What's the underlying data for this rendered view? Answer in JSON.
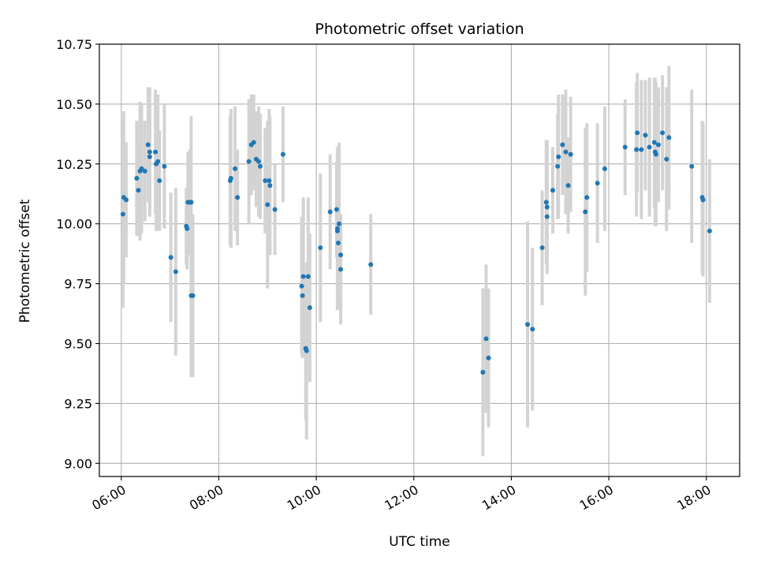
{
  "chart_data": {
    "type": "scatter",
    "title": "Photometric offset variation",
    "xlabel": "UTC time",
    "ylabel": "Photometric offset",
    "xlim": [
      "05:33",
      "18:41"
    ],
    "ylim": [
      8.945,
      10.75
    ],
    "x_ticks": [
      "06:00",
      "08:00",
      "10:00",
      "12:00",
      "14:00",
      "16:00",
      "18:00"
    ],
    "y_ticks": [
      "9.00",
      "9.25",
      "9.50",
      "9.75",
      "10.00",
      "10.25",
      "10.50",
      "10.75"
    ],
    "grid": true,
    "colors": {
      "point": "#1f77b4",
      "errorbar": "#d3d3d3",
      "grid": "#b0b0b0"
    },
    "series": [
      {
        "points": [
          {
            "x": "06:02",
            "y": 10.04,
            "err": 0.39
          },
          {
            "x": "06:03",
            "y": 10.11,
            "err": 0.36
          },
          {
            "x": "06:06",
            "y": 10.1,
            "err": 0.24
          },
          {
            "x": "06:19",
            "y": 10.19,
            "err": 0.24
          },
          {
            "x": "06:21",
            "y": 10.14,
            "err": 0.19
          },
          {
            "x": "06:23",
            "y": 10.22,
            "err": 0.29
          },
          {
            "x": "06:25",
            "y": 10.23,
            "err": 0.27
          },
          {
            "x": "06:29",
            "y": 10.22,
            "err": 0.21
          },
          {
            "x": "06:33",
            "y": 10.33,
            "err": 0.24
          },
          {
            "x": "06:35",
            "y": 10.3,
            "err": 0.27
          },
          {
            "x": "06:35",
            "y": 10.28,
            "err": 0.22
          },
          {
            "x": "06:42",
            "y": 10.3,
            "err": 0.26
          },
          {
            "x": "06:43",
            "y": 10.25,
            "err": 0.28
          },
          {
            "x": "06:45",
            "y": 10.26,
            "err": 0.28
          },
          {
            "x": "06:47",
            "y": 10.18,
            "err": 0.21
          },
          {
            "x": "06:53",
            "y": 10.24,
            "err": 0.26
          },
          {
            "x": "07:01",
            "y": 9.86,
            "err": 0.27
          },
          {
            "x": "07:07",
            "y": 9.8,
            "err": 0.35
          },
          {
            "x": "07:20",
            "y": 9.99,
            "err": 0.16
          },
          {
            "x": "07:21",
            "y": 9.98,
            "err": 0.17
          },
          {
            "x": "07:22",
            "y": 10.09,
            "err": 0.21
          },
          {
            "x": "07:24",
            "y": 10.09,
            "err": 0.22
          },
          {
            "x": "07:26",
            "y": 10.09,
            "err": 0.36
          },
          {
            "x": "07:26",
            "y": 9.7,
            "err": 0.34
          },
          {
            "x": "07:28",
            "y": 9.7,
            "err": 0.34
          },
          {
            "x": "08:14",
            "y": 10.18,
            "err": 0.27
          },
          {
            "x": "08:15",
            "y": 10.19,
            "err": 0.29
          },
          {
            "x": "08:20",
            "y": 10.23,
            "err": 0.26
          },
          {
            "x": "08:23",
            "y": 10.11,
            "err": 0.2
          },
          {
            "x": "08:37",
            "y": 10.26,
            "err": 0.26
          },
          {
            "x": "08:40",
            "y": 10.33,
            "err": 0.21
          },
          {
            "x": "08:43",
            "y": 10.34,
            "err": 0.2
          },
          {
            "x": "08:46",
            "y": 10.27,
            "err": 0.2
          },
          {
            "x": "08:49",
            "y": 10.26,
            "err": 0.23
          },
          {
            "x": "08:51",
            "y": 10.24,
            "err": 0.22
          },
          {
            "x": "08:57",
            "y": 10.18,
            "err": 0.22
          },
          {
            "x": "09:00",
            "y": 10.08,
            "err": 0.35
          },
          {
            "x": "09:02",
            "y": 10.18,
            "err": 0.3
          },
          {
            "x": "09:03",
            "y": 10.16,
            "err": 0.29
          },
          {
            "x": "09:09",
            "y": 10.06,
            "err": 0.19
          },
          {
            "x": "09:19",
            "y": 10.29,
            "err": 0.2
          },
          {
            "x": "09:42",
            "y": 9.74,
            "err": 0.29
          },
          {
            "x": "09:43",
            "y": 9.7,
            "err": 0.26
          },
          {
            "x": "09:44",
            "y": 9.78,
            "err": 0.33
          },
          {
            "x": "09:47",
            "y": 9.48,
            "err": 0.3
          },
          {
            "x": "09:48",
            "y": 9.47,
            "err": 0.37
          },
          {
            "x": "09:50",
            "y": 9.78,
            "err": 0.33
          },
          {
            "x": "09:52",
            "y": 9.65,
            "err": 0.31
          },
          {
            "x": "10:05",
            "y": 9.9,
            "err": 0.31
          },
          {
            "x": "10:17",
            "y": 10.05,
            "err": 0.24
          },
          {
            "x": "10:25",
            "y": 10.06,
            "err": 0.2
          },
          {
            "x": "10:26",
            "y": 9.98,
            "err": 0.34
          },
          {
            "x": "10:26",
            "y": 9.97,
            "err": 0.33
          },
          {
            "x": "10:27",
            "y": 9.92,
            "err": 0.26
          },
          {
            "x": "10:28",
            "y": 10.0,
            "err": 0.34
          },
          {
            "x": "10:30",
            "y": 9.87,
            "err": 0.17
          },
          {
            "x": "10:30",
            "y": 9.81,
            "err": 0.23
          },
          {
            "x": "11:07",
            "y": 9.83,
            "err": 0.21
          },
          {
            "x": "13:25",
            "y": 9.38,
            "err": 0.35
          },
          {
            "x": "13:29",
            "y": 9.52,
            "err": 0.31
          },
          {
            "x": "13:32",
            "y": 9.44,
            "err": 0.29
          },
          {
            "x": "14:20",
            "y": 9.58,
            "err": 0.43
          },
          {
            "x": "14:26",
            "y": 9.56,
            "err": 0.34
          },
          {
            "x": "14:38",
            "y": 9.9,
            "err": 0.24
          },
          {
            "x": "14:43",
            "y": 10.09,
            "err": 0.26
          },
          {
            "x": "14:44",
            "y": 10.07,
            "err": 0.28
          },
          {
            "x": "14:44",
            "y": 10.03,
            "err": 0.23
          },
          {
            "x": "14:51",
            "y": 10.14,
            "err": 0.18
          },
          {
            "x": "14:57",
            "y": 10.24,
            "err": 0.22
          },
          {
            "x": "14:58",
            "y": 10.28,
            "err": 0.26
          },
          {
            "x": "15:03",
            "y": 10.33,
            "err": 0.21
          },
          {
            "x": "15:07",
            "y": 10.3,
            "err": 0.26
          },
          {
            "x": "15:10",
            "y": 10.16,
            "err": 0.2
          },
          {
            "x": "15:13",
            "y": 10.29,
            "err": 0.24
          },
          {
            "x": "15:31",
            "y": 10.05,
            "err": 0.35
          },
          {
            "x": "15:33",
            "y": 10.11,
            "err": 0.31
          },
          {
            "x": "15:46",
            "y": 10.17,
            "err": 0.25
          },
          {
            "x": "15:55",
            "y": 10.23,
            "err": 0.26
          },
          {
            "x": "16:20",
            "y": 10.32,
            "err": 0.2
          },
          {
            "x": "16:34",
            "y": 10.31,
            "err": 0.28
          },
          {
            "x": "16:35",
            "y": 10.38,
            "err": 0.25
          },
          {
            "x": "16:40",
            "y": 10.31,
            "err": 0.29
          },
          {
            "x": "16:45",
            "y": 10.37,
            "err": 0.23
          },
          {
            "x": "16:50",
            "y": 10.32,
            "err": 0.29
          },
          {
            "x": "16:56",
            "y": 10.34,
            "err": 0.27
          },
          {
            "x": "16:57",
            "y": 10.3,
            "err": 0.31
          },
          {
            "x": "16:58",
            "y": 10.29,
            "err": 0.3
          },
          {
            "x": "17:01",
            "y": 10.33,
            "err": 0.24
          },
          {
            "x": "17:06",
            "y": 10.38,
            "err": 0.24
          },
          {
            "x": "17:11",
            "y": 10.27,
            "err": 0.3
          },
          {
            "x": "17:14",
            "y": 10.36,
            "err": 0.3
          },
          {
            "x": "17:42",
            "y": 10.24,
            "err": 0.32
          },
          {
            "x": "17:55",
            "y": 10.11,
            "err": 0.32
          },
          {
            "x": "17:56",
            "y": 10.1,
            "err": 0.32
          },
          {
            "x": "18:04",
            "y": 9.97,
            "err": 0.3
          }
        ]
      }
    ]
  }
}
